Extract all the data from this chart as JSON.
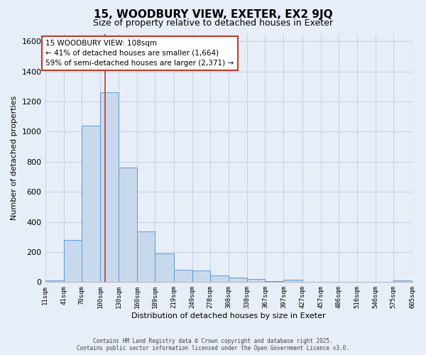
{
  "title1": "15, WOODBURY VIEW, EXETER, EX2 9JQ",
  "title2": "Size of property relative to detached houses in Exeter",
  "xlabel": "Distribution of detached houses by size in Exeter",
  "ylabel": "Number of detached properties",
  "bin_edges": [
    11,
    41,
    70,
    100,
    130,
    160,
    189,
    219,
    249,
    278,
    308,
    338,
    367,
    397,
    427,
    457,
    486,
    516,
    546,
    575,
    605
  ],
  "bar_heights": [
    10,
    280,
    1040,
    1260,
    760,
    335,
    190,
    80,
    75,
    45,
    30,
    20,
    5,
    15,
    3,
    3,
    2,
    0,
    0,
    10
  ],
  "bar_color": "#c9d9ed",
  "bar_edge_color": "#5b9bd5",
  "property_size": 108,
  "vline_color": "#c0392b",
  "annotation_line1": "15 WOODBURY VIEW: 108sqm",
  "annotation_line2": "← 41% of detached houses are smaller (1,664)",
  "annotation_line3": "59% of semi-detached houses are larger (2,371) →",
  "annotation_box_color": "#ffffff",
  "annotation_box_edge_color": "#c0392b",
  "ylim": [
    0,
    1650
  ],
  "xlim": [
    11,
    605
  ],
  "background_color": "#e8eef8",
  "grid_color": "#c8d4e8",
  "footer1": "Contains HM Land Registry data © Crown copyright and database right 2025.",
  "footer2": "Contains public sector information licensed under the Open Government Licence v3.0.",
  "title1_fontsize": 11,
  "title2_fontsize": 9,
  "ylabel_fontsize": 8,
  "xlabel_fontsize": 8
}
